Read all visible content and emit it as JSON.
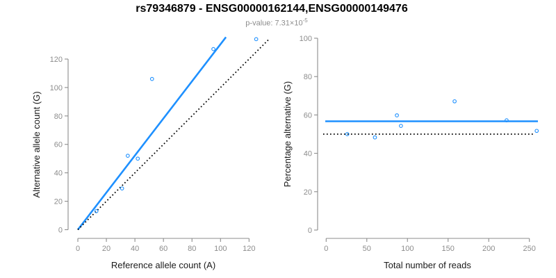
{
  "header": {
    "title": "rs79346879 - ENSG00000162144,ENSG00000149476",
    "subtitle_prefix": "p-value: 7.31×10",
    "subtitle_exponent": "-5"
  },
  "colors": {
    "accent_blue": "#1E90FF",
    "axis_gray": "#8c8c8c",
    "tick_label_gray": "#8c8c8c",
    "axis_title_black": "#1a1a1a",
    "identity_black": "#000000",
    "background": "#ffffff"
  },
  "chart_data": [
    {
      "type": "scatter",
      "name": "allele-counts-scatter",
      "title": "",
      "xlabel": "Reference allele count (A)",
      "ylabel": "Alternative allele count (G)",
      "xticks": [
        0,
        20,
        40,
        60,
        80,
        100,
        120
      ],
      "yticks": [
        0,
        20,
        40,
        60,
        80,
        100,
        120
      ],
      "xlim": [
        0,
        134
      ],
      "ylim": [
        0,
        136
      ],
      "grid": false,
      "legend": "none",
      "points": [
        [
          13,
          13
        ],
        [
          31,
          29
        ],
        [
          35,
          52
        ],
        [
          42,
          50
        ],
        [
          52,
          106
        ],
        [
          95,
          127
        ],
        [
          125,
          134
        ]
      ],
      "lines": [
        {
          "name": "regression-line",
          "x1": 0,
          "y1": 0,
          "x2": 103.8,
          "y2": 135.4,
          "style": "solid",
          "color": "#1E90FF"
        },
        {
          "name": "identity-line",
          "x1": 0,
          "y1": 0,
          "x2": 134,
          "y2": 134,
          "style": "dotted",
          "color": "#000000"
        }
      ]
    },
    {
      "type": "scatter",
      "name": "percentage-vs-reads-scatter",
      "title": "",
      "xlabel": "Total number of reads",
      "ylabel": "Percentage alternative (G)",
      "xticks": [
        0,
        50,
        100,
        150,
        200,
        250
      ],
      "yticks": [
        0,
        20,
        40,
        60,
        80,
        100
      ],
      "xlim": [
        -10,
        261
      ],
      "ylim": [
        0,
        100
      ],
      "grid": false,
      "legend": "none",
      "points": [
        [
          26,
          50
        ],
        [
          60,
          48.3
        ],
        [
          87,
          59.8
        ],
        [
          92,
          54.3
        ],
        [
          158,
          67.1
        ],
        [
          222,
          57.2
        ],
        [
          259,
          51.7
        ]
      ],
      "lines": [
        {
          "name": "mean-percentage-line",
          "x1": -1.1,
          "y1": 56.7,
          "x2": 260.5,
          "y2": 56.7,
          "style": "solid",
          "color": "#1E90FF"
        },
        {
          "name": "expected-percentage-line",
          "x1": -3.7,
          "y1": 50,
          "x2": 257,
          "y2": 50,
          "style": "dotted",
          "color": "#000000"
        }
      ]
    }
  ]
}
